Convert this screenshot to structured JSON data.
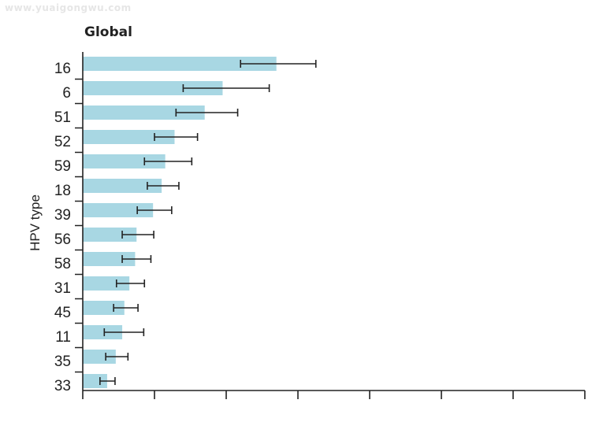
{
  "watermark": "www.yuaigongwu.com",
  "chart_data": {
    "type": "bar",
    "orientation": "horizontal",
    "title": "Global",
    "xlabel": "",
    "ylabel": "HPV type",
    "categories": [
      "16",
      "6",
      "51",
      "52",
      "59",
      "18",
      "39",
      "56",
      "58",
      "31",
      "45",
      "11",
      "35",
      "33"
    ],
    "values": [
      2.7,
      1.95,
      1.7,
      1.28,
      1.15,
      1.1,
      0.98,
      0.75,
      0.73,
      0.65,
      0.58,
      0.55,
      0.46,
      0.34
    ],
    "error_low": [
      2.2,
      1.4,
      1.3,
      1.0,
      0.86,
      0.9,
      0.76,
      0.55,
      0.55,
      0.47,
      0.43,
      0.3,
      0.32,
      0.24
    ],
    "error_high": [
      3.25,
      2.6,
      2.16,
      1.6,
      1.52,
      1.34,
      1.24,
      0.99,
      0.95,
      0.86,
      0.77,
      0.85,
      0.63,
      0.45
    ],
    "xlim": [
      0,
      7
    ],
    "xticks": [
      0,
      1,
      2,
      3,
      4,
      5,
      6,
      7
    ],
    "bar_color": "#a8d7e3",
    "error_color": "#222222"
  }
}
